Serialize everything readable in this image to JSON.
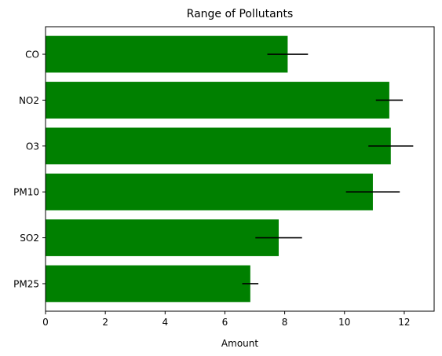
{
  "chart_data": {
    "type": "bar",
    "orientation": "horizontal",
    "title": "Range of Pollutants",
    "xlabel": "Amount",
    "ylabel": "",
    "xlim": [
      0,
      13
    ],
    "xticks": [
      0,
      2,
      4,
      6,
      8,
      10,
      12
    ],
    "xtick_labels": [
      "0",
      "2",
      "4",
      "6",
      "8",
      "10",
      "12"
    ],
    "categories": [
      "CO",
      "NO2",
      "O3",
      "PM10",
      "SO2",
      "PM25"
    ],
    "values": [
      8.1,
      11.5,
      11.55,
      10.95,
      7.8,
      6.85
    ],
    "errors": [
      0.68,
      0.45,
      0.75,
      0.9,
      0.78,
      0.27
    ],
    "bar_color": "#008000",
    "error_color": "#000000",
    "grid": false,
    "legend": "none"
  }
}
